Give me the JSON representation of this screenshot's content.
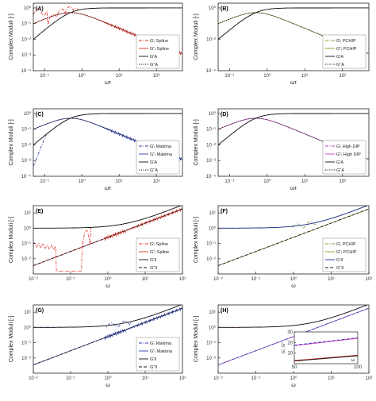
{
  "chart_data": [
    {
      "panel": "(A)",
      "type": "line",
      "ylabel": "Complex Moduli [-]",
      "xlabel": "ωτ",
      "xscale": "log",
      "yscale": "log",
      "xlim": [
        0.05,
        500
      ],
      "ylim": [
        0.0001,
        2
      ],
      "xticks": [
        "10⁻¹",
        "10⁰",
        "10¹",
        "10²"
      ],
      "yticks": [
        "10⁰",
        "10⁻¹",
        "10⁻²",
        "10⁻³",
        "10⁻⁴"
      ],
      "legend_position": "right",
      "series": [
        {
          "name": "G'ᵢ Spline",
          "color": "#e0302a",
          "dash": "dashdot",
          "family": "Gp",
          "ripple": "osc"
        },
        {
          "name": "G''ᵢ Spline",
          "color": "#e0302a",
          "dash": "solid",
          "family": "Gpp",
          "ripple": "noise"
        },
        {
          "name": "G'A",
          "color": "#111111",
          "dash": "solid",
          "family": "Gp",
          "ripple": "none"
        },
        {
          "name": "G''A",
          "color": "#111111",
          "dash": "dotted",
          "family": "Gpp",
          "ripple": "none"
        }
      ]
    },
    {
      "panel": "(B)",
      "type": "line",
      "ylabel": "Complex Moduli [-]",
      "xlabel": "ωτ",
      "xscale": "log",
      "yscale": "log",
      "xlim": [
        0.05,
        500
      ],
      "ylim": [
        0.0001,
        2
      ],
      "xticks": [
        "10⁻¹",
        "10⁰",
        "10¹",
        "10²"
      ],
      "yticks": [
        "10⁰",
        "10⁻²",
        "10⁻⁴"
      ],
      "legend_position": "right",
      "series": [
        {
          "name": "G'ᵢ PCHIP",
          "color": "#8a9a2a",
          "dash": "dashdot",
          "family": "Gp",
          "ripple": "none"
        },
        {
          "name": "G''ᵢ PCHIP",
          "color": "#8a9a2a",
          "dash": "solid",
          "family": "Gpp",
          "ripple": "none"
        },
        {
          "name": "G'A",
          "color": "#111111",
          "dash": "solid",
          "family": "Gp",
          "ripple": "none"
        },
        {
          "name": "G''A",
          "color": "#111111",
          "dash": "dotted",
          "family": "Gpp",
          "ripple": "none"
        }
      ]
    },
    {
      "panel": "(C)",
      "type": "line",
      "ylabel": "Complex Moduli [-]",
      "xlabel": "ωτ",
      "xscale": "log",
      "yscale": "log",
      "xlim": [
        0.05,
        500
      ],
      "ylim": [
        0.0001,
        2
      ],
      "xticks": [
        "10⁻¹",
        "10⁰",
        "10¹",
        "10²"
      ],
      "yticks": [
        "10⁰",
        "10⁻¹",
        "10⁻²",
        "10⁻³",
        "10⁻⁴"
      ],
      "legend_position": "right",
      "series": [
        {
          "name": "G'ᵢ Makima",
          "color": "#2b3fb0",
          "dash": "dashdot",
          "family": "Gp",
          "ripple": "lowdrop"
        },
        {
          "name": "G''ᵢ Makima",
          "color": "#2b3fb0",
          "dash": "solid",
          "family": "Gpp",
          "ripple": "noise"
        },
        {
          "name": "G'A",
          "color": "#111111",
          "dash": "solid",
          "family": "Gp",
          "ripple": "none"
        },
        {
          "name": "G''A",
          "color": "#111111",
          "dash": "dotted",
          "family": "Gpp",
          "ripple": "none"
        }
      ]
    },
    {
      "panel": "(D)",
      "type": "line",
      "ylabel": "Complex Moduli [-]",
      "xlabel": "ωτ",
      "xscale": "log",
      "yscale": "log",
      "xlim": [
        0.05,
        500
      ],
      "ylim": [
        0.0001,
        2
      ],
      "xticks": [
        "10⁻¹",
        "10⁰",
        "10¹",
        "10²"
      ],
      "yticks": [
        "10⁰",
        "10⁻¹",
        "10⁻²",
        "10⁻³",
        "10⁻⁴"
      ],
      "legend_position": "right",
      "series": [
        {
          "name": "G'ᵢ High DIP",
          "color": "#c23bbf",
          "dash": "dashdot",
          "family": "Gp",
          "ripple": "none"
        },
        {
          "name": "G''ᵢ High DIP",
          "color": "#c23bbf",
          "dash": "solid",
          "family": "Gpp",
          "ripple": "none"
        },
        {
          "name": "G'A",
          "color": "#111111",
          "dash": "solid",
          "family": "Gp",
          "ripple": "none"
        },
        {
          "name": "G''A",
          "color": "#111111",
          "dash": "dotted",
          "family": "Gpp",
          "ripple": "none"
        }
      ]
    },
    {
      "panel": "(E)",
      "type": "line",
      "ylabel": "Complex Moduli [-]",
      "xlabel": "ω",
      "xscale": "log",
      "yscale": "log",
      "xlim": [
        0.01,
        100
      ],
      "ylim": [
        0.001,
        30
      ],
      "xticks": [
        "10⁻²",
        "10⁻¹",
        "10⁰",
        "10¹",
        "10²"
      ],
      "yticks": [
        "10¹",
        "10⁰",
        "10⁻¹",
        "10⁻²"
      ],
      "legend_position": "right",
      "series": [
        {
          "name": "G'ᵢ Spline",
          "color": "#e0302a",
          "dash": "dashdot",
          "family": "Hp",
          "ripple": "spline2"
        },
        {
          "name": "G''ᵢ Spline",
          "color": "#e0302a",
          "dash": "solid",
          "family": "Hpp",
          "ripple": "noise"
        },
        {
          "name": "G'II",
          "color": "#111111",
          "dash": "solid",
          "family": "Hp",
          "ripple": "none"
        },
        {
          "name": "G''II",
          "color": "#111111",
          "dash": "dashed",
          "family": "Hpp",
          "ripple": "none"
        }
      ]
    },
    {
      "panel": "(F)",
      "type": "line",
      "ylabel": "Complex Moduli [-]",
      "xlabel": "ω",
      "xscale": "log",
      "yscale": "log",
      "xlim": [
        0.01,
        100
      ],
      "ylim": [
        0.001,
        30
      ],
      "xticks": [
        "10⁻²",
        "10⁻¹",
        "10⁰",
        "10¹",
        "10²"
      ],
      "yticks": [
        "10¹",
        "10⁰",
        "10⁻¹",
        "10⁻²"
      ],
      "legend_position": "right",
      "series": [
        {
          "name": "G'ᵢ PCHIP",
          "color": "#8a9a2a",
          "dash": "dashdot",
          "family": "Hp",
          "ripple": "bump"
        },
        {
          "name": "G''ᵢ PCHIP",
          "color": "#8a9a2a",
          "dash": "solid",
          "family": "Hpp",
          "ripple": "none"
        },
        {
          "name": "G'II",
          "color": "#1a2a8a",
          "dash": "solid",
          "family": "Hp",
          "ripple": "none"
        },
        {
          "name": "G''II",
          "color": "#111111",
          "dash": "dashed",
          "family": "Hpp",
          "ripple": "none"
        }
      ]
    },
    {
      "panel": "(G)",
      "type": "line",
      "ylabel": "Complex Moduli [-]",
      "xlabel": "ω",
      "xscale": "log",
      "yscale": "log",
      "xlim": [
        0.01,
        100
      ],
      "ylim": [
        0.001,
        30
      ],
      "xticks": [
        "10⁻²",
        "10⁻¹",
        "10⁰",
        "10¹",
        "10²"
      ],
      "yticks": [
        "10¹",
        "10⁰",
        "10⁻¹",
        "10⁻²"
      ],
      "legend_position": "right",
      "series": [
        {
          "name": "G'ᵢ Makima",
          "color": "#2b3fb0",
          "dash": "dashdot",
          "family": "Hp",
          "ripple": "bump"
        },
        {
          "name": "G''ᵢ Makima",
          "color": "#2b3fb0",
          "dash": "solid",
          "family": "Hpp",
          "ripple": "noise"
        },
        {
          "name": "G'II",
          "color": "#111111",
          "dash": "solid",
          "family": "Hp",
          "ripple": "none"
        },
        {
          "name": "G''II",
          "color": "#111111",
          "dash": "dashed",
          "family": "Hpp",
          "ripple": "none"
        }
      ]
    },
    {
      "panel": "(H)",
      "type": "line",
      "ylabel": "Complex Moduli [-]",
      "xlabel": "ω",
      "xscale": "log",
      "yscale": "log",
      "xlim": [
        0.01,
        100
      ],
      "ylim": [
        0.001,
        30
      ],
      "xticks": [
        "10⁻²",
        "10⁻¹",
        "10⁰",
        "10¹",
        "10²"
      ],
      "yticks": [
        "10¹",
        "10⁰",
        "10⁻¹",
        "10⁻²"
      ],
      "legend_position": "none",
      "series": [
        {
          "name": "G'ᵢ High DIP",
          "color": "#c23bbf",
          "dash": "dashdot",
          "family": "Hp",
          "ripple": "none"
        },
        {
          "name": "G''ᵢ High DIP",
          "color": "#c23bbf",
          "dash": "solid",
          "family": "Hpp",
          "ripple": "none"
        },
        {
          "name": "G'II",
          "color": "#111111",
          "dash": "solid",
          "family": "Hp",
          "ripple": "none"
        },
        {
          "name": "G''II",
          "color": "#2b3fb0",
          "dash": "dashed",
          "family": "Hpp",
          "ripple": "none"
        }
      ],
      "inset": {
        "type": "line",
        "xscale": "linear",
        "yscale": "linear",
        "xlim": [
          50,
          100
        ],
        "ylim": [
          0,
          30
        ],
        "xticks": [
          "50",
          "100"
        ],
        "yticks": [
          "10",
          "20",
          "30"
        ],
        "xlabel": "ω",
        "ylabel": "G', G''",
        "series": [
          {
            "color": "#2b3fb0",
            "dash": "dashed",
            "x": [
              50,
              100
            ],
            "y": [
              17.5,
              24.5
            ]
          },
          {
            "color": "#c23bbf",
            "dash": "solid",
            "x": [
              50,
              100
            ],
            "y": [
              17.0,
              24.0
            ]
          },
          {
            "color": "#e0302a",
            "dash": "solid",
            "x": [
              50,
              100
            ],
            "y": [
              3.0,
              8.0
            ]
          },
          {
            "color": "#111111",
            "dash": "solid",
            "x": [
              50,
              100
            ],
            "y": [
              2.5,
              7.5
            ]
          }
        ]
      }
    }
  ]
}
